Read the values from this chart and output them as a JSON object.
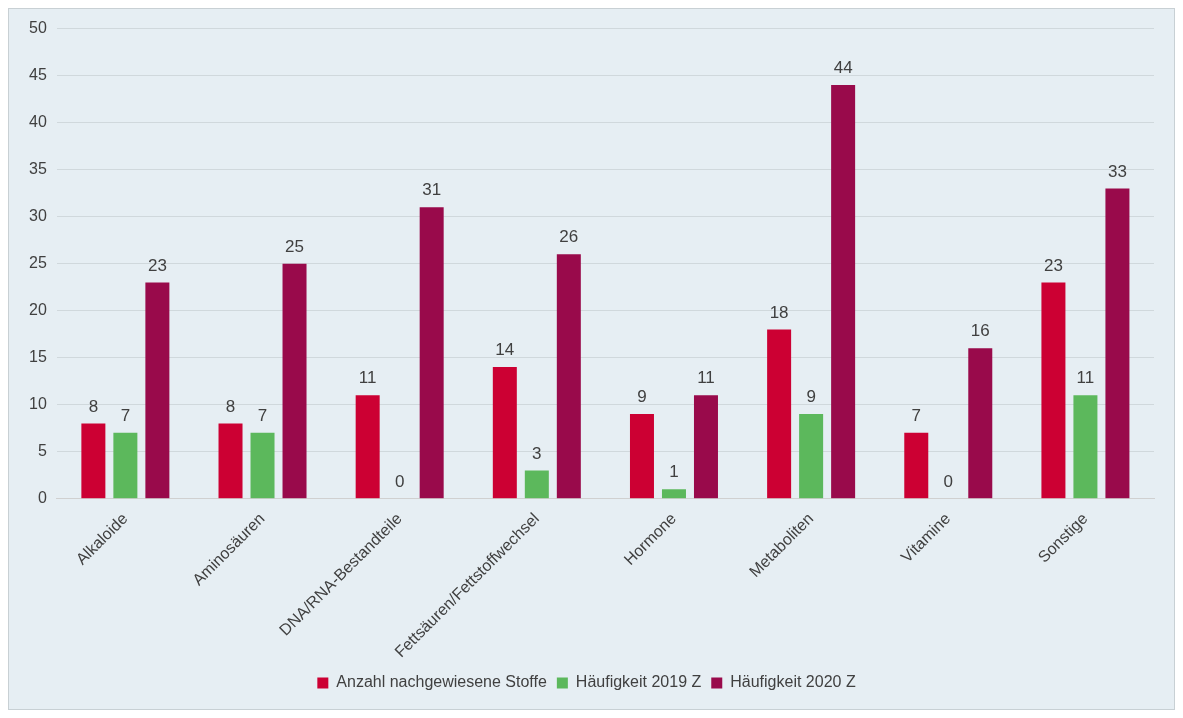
{
  "chart_data": {
    "type": "bar",
    "categories": [
      "Alkaloide",
      "Aminosäuren",
      "DNA/RNA-Bestandteile",
      "Fettsäuren/Fettstoffwechsel",
      "Hormone",
      "Metaboliten",
      "Vitamine",
      "Sonstige"
    ],
    "series": [
      {
        "name": "Anzahl nachgewiesene Stoffe",
        "color": "#cc0033",
        "values": [
          8,
          8,
          11,
          14,
          9,
          18,
          7,
          23
        ]
      },
      {
        "name": "Häufigkeit 2019 Z",
        "color": "#5cb85c",
        "values": [
          7,
          7,
          0,
          3,
          1,
          9,
          0,
          11
        ]
      },
      {
        "name": "Häufigkeit 2020 Z",
        "color": "#990a4b",
        "values": [
          23,
          25,
          31,
          26,
          11,
          44,
          16,
          33
        ]
      }
    ],
    "ylim": [
      0,
      50
    ],
    "yticks": [
      0,
      5,
      10,
      15,
      20,
      25,
      30,
      35,
      40,
      45,
      50
    ],
    "grid": "y",
    "legend": "bottom",
    "data_labels": true
  }
}
